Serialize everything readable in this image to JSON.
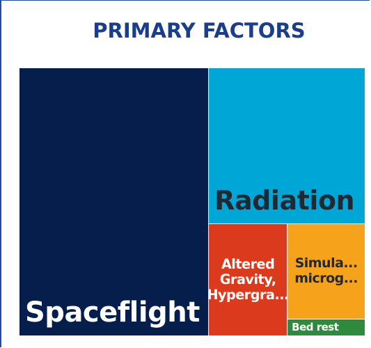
{
  "chart_data": {
    "type": "treemap",
    "title": "PRIMARY FACTORS",
    "categories": [
      "Spaceflight",
      "Radiation",
      "Altered Gravity, Hypergra...",
      "Simula... microg...",
      "Bed rest"
    ],
    "values": [
      54.7,
      26.3,
      9.5,
      8,
      1.4
    ],
    "colors": [
      "#061e4b",
      "#00a6d6",
      "#dc3a1c",
      "#f7a21b",
      "#2e8b3e"
    ],
    "label_colors": [
      "#ffffff",
      "#1e2a33",
      "#ffffff",
      "#1e2a33",
      "#ffffff"
    ]
  }
}
